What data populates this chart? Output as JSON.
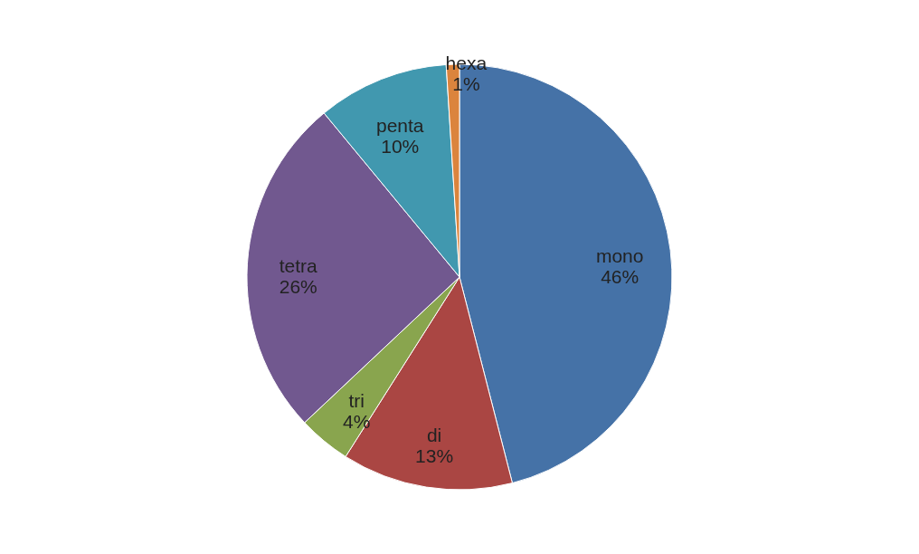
{
  "chart_data": {
    "type": "pie",
    "categories": [
      "mono",
      "di",
      "tri",
      "tetra",
      "penta",
      "hexa"
    ],
    "values": [
      46,
      13,
      4,
      26,
      10,
      1
    ],
    "colors": [
      "#4572a7",
      "#aa4643",
      "#89a54e",
      "#71588f",
      "#4198af",
      "#db843d"
    ],
    "value_labels": [
      "46%",
      "13%",
      "4%",
      "26%",
      "10%",
      "1%"
    ],
    "legend": false
  }
}
